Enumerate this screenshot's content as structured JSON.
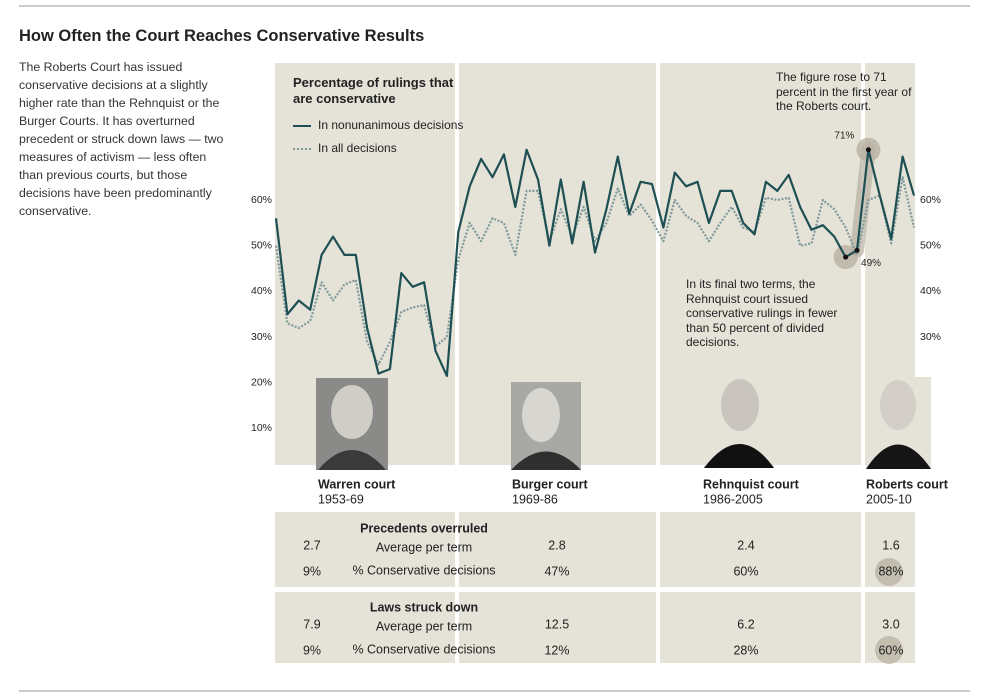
{
  "title": "How Often the Court Reaches Conservative Results",
  "description": "The Roberts Court has issued conservative decisions at a slightly higher rate than the Rehnquist or the Burger Courts. It has overturned precedent or struck down laws — two measures of activism — less often than previous courts, but those decisions have been predominantly conservative.",
  "chart_data": {
    "type": "line",
    "title": "Percentage of rulings that are conservative",
    "series": [
      {
        "name": "In nonunanimous decisions",
        "color": "#1d4f53",
        "style": "solid",
        "values": [
          56,
          35,
          38,
          36,
          48,
          52,
          48,
          48,
          32,
          22,
          23,
          44,
          41,
          42,
          27,
          21.5,
          53,
          63,
          69,
          65,
          70,
          58.5,
          71,
          64.5,
          50,
          64.5,
          50.5,
          64,
          48.5,
          58,
          69.5,
          57,
          64,
          63.5,
          54,
          66,
          63,
          64,
          55,
          62,
          62,
          55,
          52.5,
          64,
          62,
          65.5,
          58.5,
          53.5,
          54.5,
          52,
          47.5,
          49,
          71,
          61,
          51.5,
          69.5,
          61
        ],
        "value_labels": [
          null,
          null,
          null,
          null,
          null,
          null,
          null,
          null,
          null,
          null,
          null,
          null,
          null,
          null,
          null,
          null,
          null,
          null,
          null,
          null,
          null,
          null,
          null,
          null,
          null,
          null,
          null,
          null,
          null,
          null,
          null,
          null,
          null,
          null,
          null,
          null,
          null,
          null,
          null,
          null,
          null,
          null,
          null,
          null,
          null,
          null,
          null,
          null,
          null,
          null,
          null,
          "49%",
          "71%",
          null,
          null,
          null,
          null
        ]
      },
      {
        "name": "In all decisions",
        "color": "#7f9a9a",
        "style": "dotted",
        "values": [
          50,
          33,
          32,
          33.5,
          42,
          38,
          41.5,
          42.5,
          29,
          24,
          29,
          35.5,
          36.5,
          37,
          28,
          30,
          47,
          55,
          51,
          56,
          55,
          48,
          62,
          62,
          51,
          58,
          52,
          58.5,
          51,
          55,
          62.5,
          56.5,
          59,
          55.5,
          51,
          60,
          56.5,
          55,
          51,
          55,
          58.5,
          54,
          53,
          60.5,
          60,
          60.5,
          50,
          50.5,
          60,
          58,
          54,
          48,
          60,
          61,
          50.5,
          65,
          54
        ]
      }
    ],
    "ylim": [
      2,
      90
    ],
    "yticks": [
      {
        "value": 10,
        "label": "10%"
      },
      {
        "value": 20,
        "label": "20%"
      },
      {
        "value": 30,
        "label": "30%"
      },
      {
        "value": 40,
        "label": "40%"
      },
      {
        "value": 50,
        "label": "50%"
      },
      {
        "value": 60,
        "label": "60%"
      }
    ],
    "y2lim": [
      2,
      90
    ],
    "y2ticks": [
      {
        "value": 30,
        "label": "30%"
      },
      {
        "value": 40,
        "label": "40%"
      },
      {
        "value": 50,
        "label": "50%"
      },
      {
        "value": 60,
        "label": "60%"
      }
    ],
    "annotations": [
      {
        "text": "The figure rose to 71 percent in the first year of the Roberts court."
      },
      {
        "text": "In its final two terms, the Rehnquist court issued conservative rulings in fewer than 50 percent of divided decisions."
      }
    ]
  },
  "courts": [
    {
      "name": "Warren court",
      "years": "1953-69"
    },
    {
      "name": "Burger court",
      "years": "1969-86"
    },
    {
      "name": "Rehnquist court",
      "years": "1986-2005"
    },
    {
      "name": "Roberts court",
      "years": "2005-10"
    }
  ],
  "table": {
    "sections": [
      {
        "title": "Precedents overruled",
        "rows": [
          {
            "label": "Average per term",
            "values": [
              "2.7",
              "2.8",
              "2.4",
              "1.6"
            ]
          },
          {
            "label": "% Conservative decisions",
            "values": [
              "9%",
              "47%",
              "60%",
              "88%"
            ]
          }
        ]
      },
      {
        "title": "Laws struck down",
        "rows": [
          {
            "label": "Average per term",
            "values": [
              "7.9",
              "12.5",
              "6.2",
              "3.0"
            ]
          },
          {
            "label": "% Conservative decisions",
            "values": [
              "9%",
              "12%",
              "28%",
              "60%"
            ]
          }
        ]
      }
    ]
  }
}
